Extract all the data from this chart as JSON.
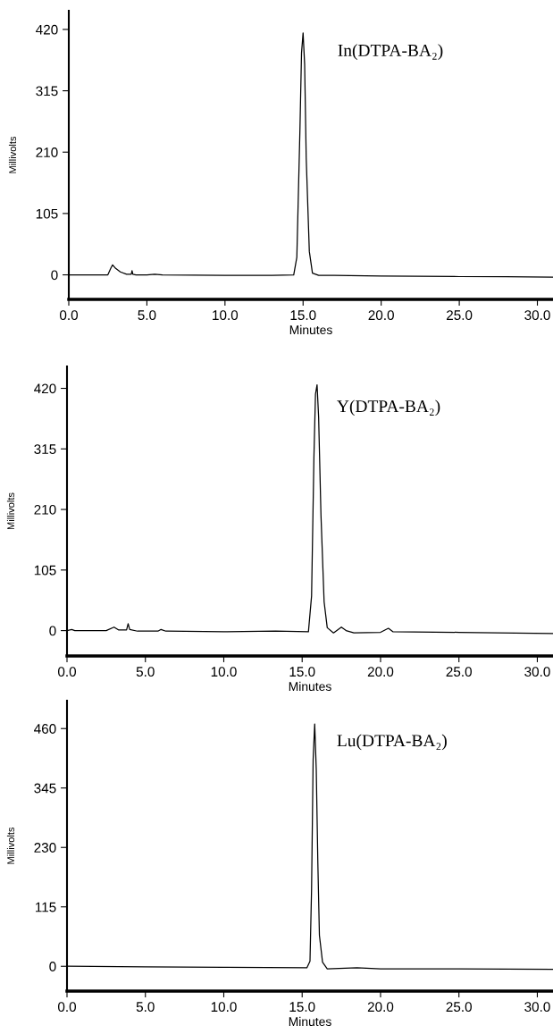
{
  "chart_data": [
    {
      "type": "line",
      "xlabel": "Minutes",
      "ylabel": "Millivolts",
      "xlim": [
        0,
        31
      ],
      "ylim": [
        -42,
        452
      ],
      "xticks": [
        {
          "value": 0,
          "label": "0.0"
        },
        {
          "value": 5,
          "label": "5.0"
        },
        {
          "value": 10,
          "label": "10.0"
        },
        {
          "value": 15,
          "label": "15.0"
        },
        {
          "value": 20,
          "label": "20.0"
        },
        {
          "value": 25,
          "label": "25.0"
        },
        {
          "value": 30,
          "label": "30.0"
        }
      ],
      "yticks": [
        0,
        105,
        210,
        315,
        420
      ],
      "grid": false,
      "legend": false,
      "marker": "none",
      "line_style": "solid",
      "annotations": [
        "In(DTPA-BA₂)"
      ],
      "series": [
        {
          "color": "#000000",
          "x": [
            0,
            2.5,
            2.7,
            2.8,
            3.0,
            3.3,
            3.7,
            4.0,
            4.05,
            4.1,
            4.3,
            5.0,
            5.5,
            6,
            10,
            13,
            14.4,
            14.6,
            14.8,
            14.9,
            15.0,
            15.1,
            15.2,
            15.4,
            15.6,
            16,
            17,
            20,
            25,
            28,
            31
          ],
          "values": [
            0,
            0,
            12,
            17,
            11,
            5,
            1,
            1,
            7,
            1,
            0,
            0,
            1,
            0,
            -1,
            -1,
            0,
            30,
            250,
            380,
            414,
            360,
            200,
            40,
            3,
            -1,
            -1,
            -2,
            -3,
            -3,
            -4
          ]
        }
      ]
    },
    {
      "type": "line",
      "xlabel": "Minutes",
      "ylabel": "Millivolts",
      "xlim": [
        0,
        31
      ],
      "ylim": [
        -44,
        458
      ],
      "xticks": [
        {
          "value": 0,
          "label": "0.0"
        },
        {
          "value": 5,
          "label": "5.0"
        },
        {
          "value": 10,
          "label": "10.0"
        },
        {
          "value": 15,
          "label": "15.0"
        },
        {
          "value": 20,
          "label": "20.0"
        },
        {
          "value": 25,
          "label": "25.0"
        },
        {
          "value": 30,
          "label": "30.0"
        }
      ],
      "yticks": [
        0,
        105,
        210,
        315,
        420
      ],
      "grid": false,
      "legend": false,
      "marker": "none",
      "line_style": "solid",
      "annotations": [
        "Y(DTPA-BA₂)"
      ],
      "series": [
        {
          "color": "#000000",
          "x": [
            0,
            0.3,
            0.5,
            2.5,
            3.0,
            3.3,
            3.8,
            3.9,
            4.0,
            4.5,
            5.8,
            6.0,
            6.3,
            10,
            13.3,
            15.4,
            15.6,
            15.75,
            15.85,
            15.95,
            16.05,
            16.2,
            16.4,
            16.6,
            17.0,
            17.5,
            17.8,
            18.3,
            20.0,
            20.5,
            20.8,
            25,
            31
          ],
          "values": [
            0,
            2,
            0,
            0,
            6,
            1,
            1,
            12,
            2,
            -1,
            -1,
            2,
            -1,
            -2,
            -1,
            -2,
            60,
            300,
            410,
            426,
            370,
            200,
            50,
            5,
            -4,
            6,
            0,
            -4,
            -3,
            4,
            -2,
            -3,
            -5
          ]
        }
      ]
    },
    {
      "type": "line",
      "xlabel": "Minutes",
      "ylabel": "Millivolts",
      "xlim": [
        0,
        31
      ],
      "ylim": [
        -48,
        514
      ],
      "xticks": [
        {
          "value": 0,
          "label": "0.0"
        },
        {
          "value": 5,
          "label": "5.0"
        },
        {
          "value": 10,
          "label": "10.0"
        },
        {
          "value": 15,
          "label": "15.0"
        },
        {
          "value": 20,
          "label": "20.0"
        },
        {
          "value": 25,
          "label": "25.0"
        },
        {
          "value": 30,
          "label": "30.0"
        }
      ],
      "yticks": [
        0,
        115,
        230,
        345,
        460
      ],
      "grid": false,
      "legend": false,
      "marker": "none",
      "line_style": "solid",
      "annotations": [
        "Lu(DTPA-BA₂)"
      ],
      "series": [
        {
          "color": "#000000",
          "x": [
            0,
            5,
            10,
            15.3,
            15.5,
            15.6,
            15.7,
            15.8,
            15.9,
            16.0,
            16.1,
            16.3,
            16.6,
            18.5,
            20,
            25,
            31
          ],
          "values": [
            0,
            -1,
            -2,
            -3,
            10,
            150,
            400,
            469,
            380,
            200,
            60,
            8,
            -5,
            -3,
            -5,
            -5,
            -6
          ]
        }
      ]
    }
  ]
}
